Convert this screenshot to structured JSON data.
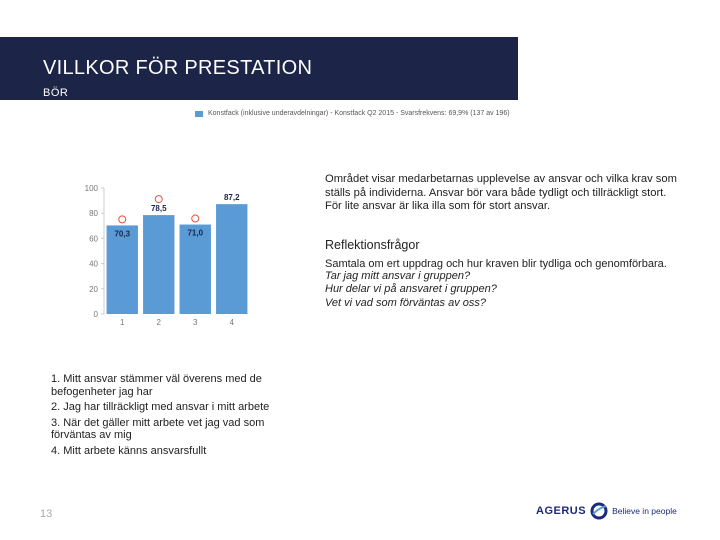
{
  "header": {
    "title": "VILLKOR FÖR PRESTATION",
    "subtitle": "BÖR"
  },
  "legend": {
    "text": "Konstfack (inklusive underavdelningar) - Konstfack Q2 2015 - Svarsfrekvens: 69,9% (137 av 196)",
    "color": "#5b9bd5"
  },
  "chart_data": {
    "type": "bar",
    "categories": [
      "1",
      "2",
      "3",
      "4"
    ],
    "values": [
      70.3,
      78.5,
      71.0,
      87.2
    ],
    "value_labels": [
      "70,3",
      "78,5",
      "71,0",
      "87,2"
    ],
    "ylim": [
      0,
      100
    ],
    "yticks": [
      0,
      20,
      40,
      60,
      80,
      100
    ],
    "title": "",
    "xlabel": "",
    "ylabel": "",
    "bar_color": "#5b9bd5",
    "marker_color": "#e8503a"
  },
  "description": "Området visar medarbetarnas upplevelse av ansvar och vilka krav som ställs på individerna. Ansvar bör vara både tydligt och tillräckligt stort. För lite ansvar är lika illa som för stort ansvar.",
  "reflection": {
    "title": "Reflektionsfrågor",
    "intro": "Samtala om ert uppdrag och hur kraven blir tydliga och genomförbara.",
    "questions": [
      "Tar jag mitt ansvar i gruppen?",
      "Hur delar vi på ansvaret i gruppen?",
      "Vet vi vad som förväntas av oss?"
    ]
  },
  "statements": [
    "1. Mitt ansvar stämmer väl överens med de befogenheter jag har",
    "2. Jag har tillräckligt med ansvar i mitt arbete",
    "3. När det gäller mitt arbete vet jag vad som förväntas av mig",
    "4. Mitt arbete känns ansvarsfullt"
  ],
  "footer": {
    "page_number": "13",
    "brand": "AGERUS",
    "tagline": "Believe in people",
    "brand_color": "#1c2a7a"
  }
}
